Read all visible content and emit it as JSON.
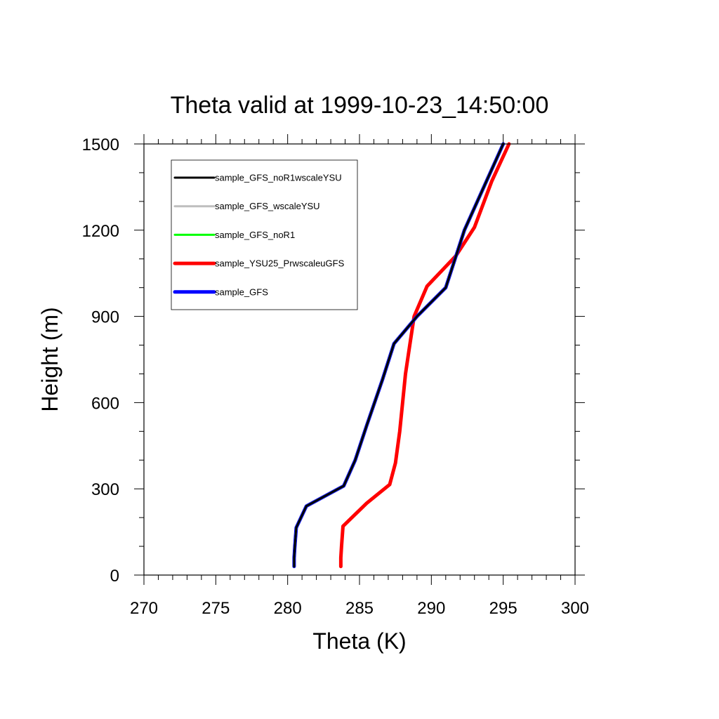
{
  "chart_data": {
    "type": "line",
    "title": "Theta valid at 1999-10-23_14:50:00",
    "xlabel": "Theta (K)",
    "ylabel": "Height (m)",
    "xlim": [
      270,
      300
    ],
    "ylim": [
      0,
      1500
    ],
    "xticks": [
      270,
      275,
      280,
      285,
      290,
      295,
      300
    ],
    "yticks": [
      0,
      300,
      600,
      900,
      1200,
      1500
    ],
    "grid": false,
    "legend_position": "top-left",
    "series": [
      {
        "name": "sample_GFS_noR1wscaleYSU",
        "color": "#000000",
        "points": [
          [
            280.45,
            30
          ],
          [
            280.45,
            60
          ],
          [
            280.5,
            100
          ],
          [
            280.6,
            165
          ],
          [
            281.3,
            240
          ],
          [
            283.9,
            310
          ],
          [
            284.7,
            400
          ],
          [
            285.5,
            520
          ],
          [
            286.6,
            680
          ],
          [
            287.4,
            805
          ],
          [
            289.0,
            900
          ],
          [
            291.0,
            1000
          ],
          [
            292.3,
            1200
          ],
          [
            295.0,
            1500
          ]
        ]
      },
      {
        "name": "sample_GFS_wscaleYSU",
        "color": "#bebebe",
        "points": [
          [
            280.45,
            30
          ],
          [
            280.45,
            60
          ],
          [
            280.5,
            100
          ],
          [
            280.6,
            165
          ],
          [
            281.3,
            240
          ],
          [
            283.9,
            310
          ],
          [
            284.7,
            400
          ],
          [
            285.5,
            520
          ],
          [
            286.6,
            680
          ],
          [
            287.4,
            805
          ],
          [
            289.0,
            900
          ],
          [
            291.0,
            1000
          ],
          [
            292.3,
            1200
          ],
          [
            295.0,
            1500
          ]
        ]
      },
      {
        "name": "sample_GFS_noR1",
        "color": "#00ff00",
        "points": [
          [
            280.45,
            30
          ],
          [
            280.45,
            60
          ],
          [
            280.5,
            100
          ],
          [
            280.6,
            165
          ],
          [
            281.3,
            240
          ],
          [
            283.9,
            310
          ],
          [
            284.7,
            400
          ],
          [
            285.5,
            520
          ],
          [
            286.6,
            680
          ],
          [
            287.4,
            805
          ],
          [
            289.0,
            900
          ],
          [
            291.0,
            1000
          ],
          [
            292.3,
            1200
          ],
          [
            295.0,
            1500
          ]
        ]
      },
      {
        "name": "sample_YSU25_PrwscaleuGFS",
        "color": "#ff0000",
        "points": [
          [
            283.7,
            30
          ],
          [
            283.7,
            60
          ],
          [
            283.75,
            100
          ],
          [
            283.85,
            170
          ],
          [
            285.5,
            250
          ],
          [
            287.1,
            315
          ],
          [
            287.5,
            390
          ],
          [
            287.8,
            500
          ],
          [
            288.0,
            600
          ],
          [
            288.2,
            700
          ],
          [
            288.5,
            800
          ],
          [
            288.8,
            900
          ],
          [
            289.7,
            1005
          ],
          [
            291.7,
            1110
          ],
          [
            293.0,
            1210
          ],
          [
            294.2,
            1370
          ],
          [
            295.4,
            1500
          ]
        ]
      },
      {
        "name": "sample_GFS",
        "color": "#0000ff",
        "points": [
          [
            280.45,
            30
          ],
          [
            280.45,
            60
          ],
          [
            280.5,
            100
          ],
          [
            280.6,
            165
          ],
          [
            281.3,
            240
          ],
          [
            283.9,
            310
          ],
          [
            284.7,
            400
          ],
          [
            285.5,
            520
          ],
          [
            286.6,
            680
          ],
          [
            287.4,
            805
          ],
          [
            289.0,
            900
          ],
          [
            291.0,
            1000
          ],
          [
            292.3,
            1200
          ],
          [
            295.0,
            1500
          ]
        ]
      }
    ]
  }
}
